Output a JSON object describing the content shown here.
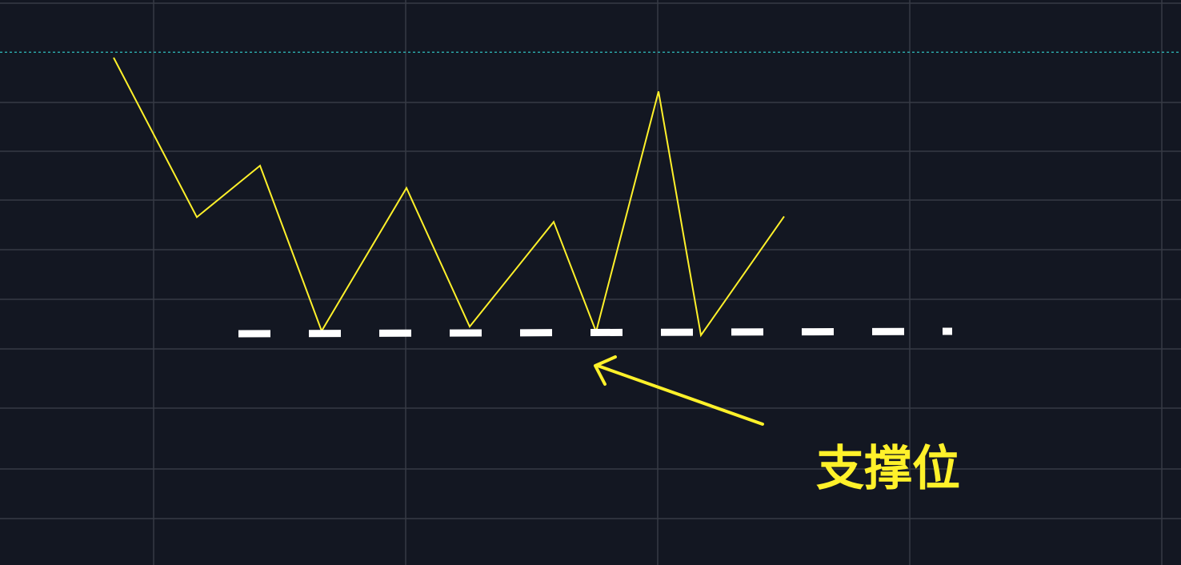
{
  "chart_data": {
    "type": "line",
    "title": "",
    "xlabel": "",
    "ylabel": "",
    "grid": true,
    "legend": "none",
    "series": [
      {
        "values": [
          0.0,
          4.43,
          3.0,
          7.59,
          3.62,
          7.47,
          4.56,
          7.61,
          0.94,
          7.71,
          4.41
        ]
      }
    ],
    "support_level": 7.72,
    "reference_level": -0.15,
    "annotation": {
      "label": "支撑位",
      "target": "support_level"
    }
  },
  "colors": {
    "background": "#131722",
    "grid": "#363a45",
    "price_line": "#fff12a",
    "support_line": "#ffffff",
    "reference_line": "#2fbfbf",
    "annotation": "#fff12a"
  }
}
